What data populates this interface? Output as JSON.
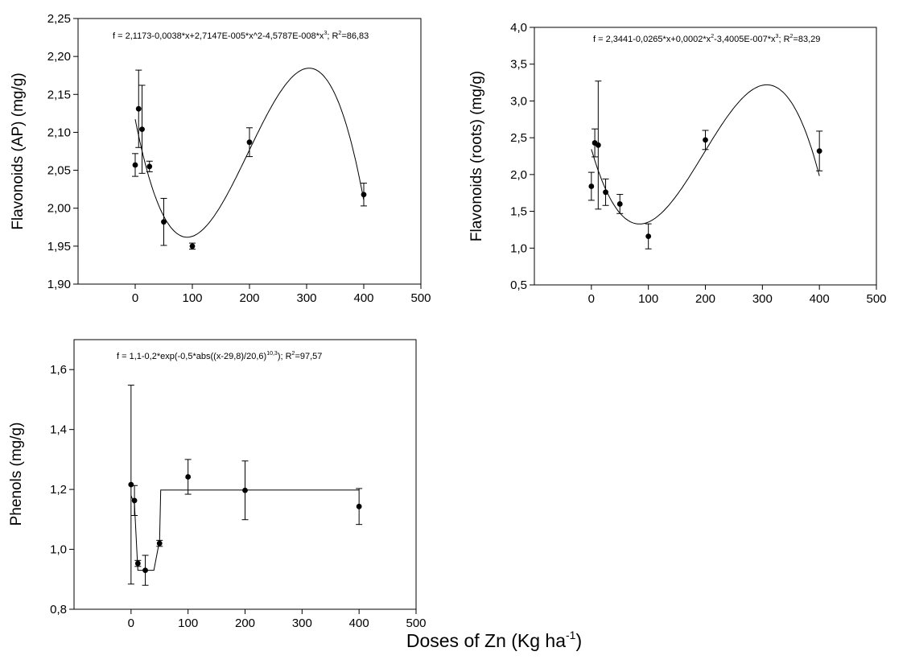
{
  "figure": {
    "xlabel": "Doses of Zn (Kg ha",
    "xlabel_sup": "-1",
    "xlabel_close": ")"
  },
  "chart_data": [
    {
      "type": "scatter",
      "ylabel": "Flavonoids (AP) (mg/g)",
      "equation": {
        "text": "f = 2,1173-0,0038*x+2,7147E-005*x^2-4,5787E-008*x",
        "sup": "3",
        "tail": "; R",
        "r2sup": "2",
        "r2": "=86,83"
      },
      "xlim": [
        -100,
        500
      ],
      "ylim": [
        1.9,
        2.25
      ],
      "xticks": [
        0,
        100,
        200,
        300,
        400,
        500
      ],
      "xtick_labels": [
        "0",
        "100",
        "200",
        "300",
        "400",
        "500"
      ],
      "yticks": [
        1.9,
        1.95,
        2.0,
        2.05,
        2.1,
        2.15,
        2.2,
        2.25
      ],
      "ytick_labels": [
        "1,90",
        "1,95",
        "2,00",
        "2,05",
        "2,10",
        "2,15",
        "2,20",
        "2,25"
      ],
      "points": [
        {
          "x": 0,
          "y": 2.057,
          "err": 0.015
        },
        {
          "x": 6,
          "y": 2.131,
          "err": 0.051
        },
        {
          "x": 12,
          "y": 2.104,
          "err": 0.058
        },
        {
          "x": 25,
          "y": 2.055,
          "err": 0.007
        },
        {
          "x": 50,
          "y": 1.982,
          "err": 0.031
        },
        {
          "x": 100,
          "y": 1.95,
          "err": 0.004
        },
        {
          "x": 200,
          "y": 2.087,
          "err": 0.019
        },
        {
          "x": 400,
          "y": 2.018,
          "err": 0.015
        }
      ],
      "fit": {
        "type": "cubic",
        "coeffs": [
          2.1173,
          -0.0038,
          2.7147e-05,
          -4.5787e-08
        ],
        "x_range": [
          0,
          400
        ]
      }
    },
    {
      "type": "scatter",
      "ylabel": "Flavonoids (roots) (mg/g)",
      "equation": {
        "text": "f = 2,3441-0,0265*x+0,0002*x",
        "sup1": "2",
        "mid": "-3,4005E-007*x",
        "sup": "3",
        "tail": "; R",
        "r2sup": "2",
        "r2": "=83,29"
      },
      "xlim": [
        -100,
        500
      ],
      "ylim": [
        0.5,
        4.0
      ],
      "xticks": [
        0,
        100,
        200,
        300,
        400,
        500
      ],
      "xtick_labels": [
        "0",
        "100",
        "200",
        "300",
        "400",
        "500"
      ],
      "yticks": [
        0.5,
        1.0,
        1.5,
        2.0,
        2.5,
        3.0,
        3.5,
        4.0
      ],
      "ytick_labels": [
        "0,5",
        "1,0",
        "1,5",
        "2,0",
        "2,5",
        "3,0",
        "3,5",
        "4,0"
      ],
      "points": [
        {
          "x": 0,
          "y": 1.84,
          "err": 0.19
        },
        {
          "x": 6,
          "y": 2.43,
          "err": 0.19
        },
        {
          "x": 12,
          "y": 2.4,
          "err": 0.87
        },
        {
          "x": 25,
          "y": 1.76,
          "err": 0.18
        },
        {
          "x": 50,
          "y": 1.6,
          "err": 0.13
        },
        {
          "x": 100,
          "y": 1.16,
          "err": 0.17
        },
        {
          "x": 200,
          "y": 2.47,
          "err": 0.13
        },
        {
          "x": 400,
          "y": 2.32,
          "err": 0.27
        }
      ],
      "fit": {
        "type": "cubic",
        "coeffs": [
          2.3441,
          -0.0265,
          0.0002,
          -3.4005e-07
        ],
        "x_range": [
          0,
          400
        ]
      }
    },
    {
      "type": "scatter",
      "ylabel": "Phenols (mg/g)",
      "equation": {
        "text": "f = 1,1-0,2*exp(-0,5*abs((x-29,8)/20,6)",
        "sup": "10,3",
        "tail": "); R",
        "r2sup": "2",
        "r2": "=97,57"
      },
      "xlim": [
        -100,
        500
      ],
      "ylim": [
        0.8,
        1.7
      ],
      "xticks": [
        0,
        100,
        200,
        300,
        400,
        500
      ],
      "xtick_labels": [
        "0",
        "100",
        "200",
        "300",
        "400",
        "500"
      ],
      "yticks": [
        0.8,
        1.0,
        1.2,
        1.4,
        1.6
      ],
      "ytick_labels": [
        "0,8",
        "1,0",
        "1,2",
        "1,4",
        "1,6"
      ],
      "points": [
        {
          "x": 0,
          "y": 1.216,
          "err": 0.332
        },
        {
          "x": 6,
          "y": 1.163,
          "err": 0.05
        },
        {
          "x": 12,
          "y": 0.953,
          "err": 0.01
        },
        {
          "x": 25,
          "y": 0.93,
          "err": 0.05
        },
        {
          "x": 50,
          "y": 1.02,
          "err": 0.01
        },
        {
          "x": 100,
          "y": 1.242,
          "err": 0.058
        },
        {
          "x": 200,
          "y": 1.197,
          "err": 0.098
        },
        {
          "x": 400,
          "y": 1.143,
          "err": 0.06
        }
      ],
      "fit": {
        "type": "piecewise",
        "points": [
          [
            0,
            1.18
          ],
          [
            6,
            1.15
          ],
          [
            12,
            0.93
          ],
          [
            40,
            0.93
          ],
          [
            50,
            1.03
          ],
          [
            52,
            1.198
          ],
          [
            400,
            1.198
          ]
        ]
      }
    }
  ]
}
